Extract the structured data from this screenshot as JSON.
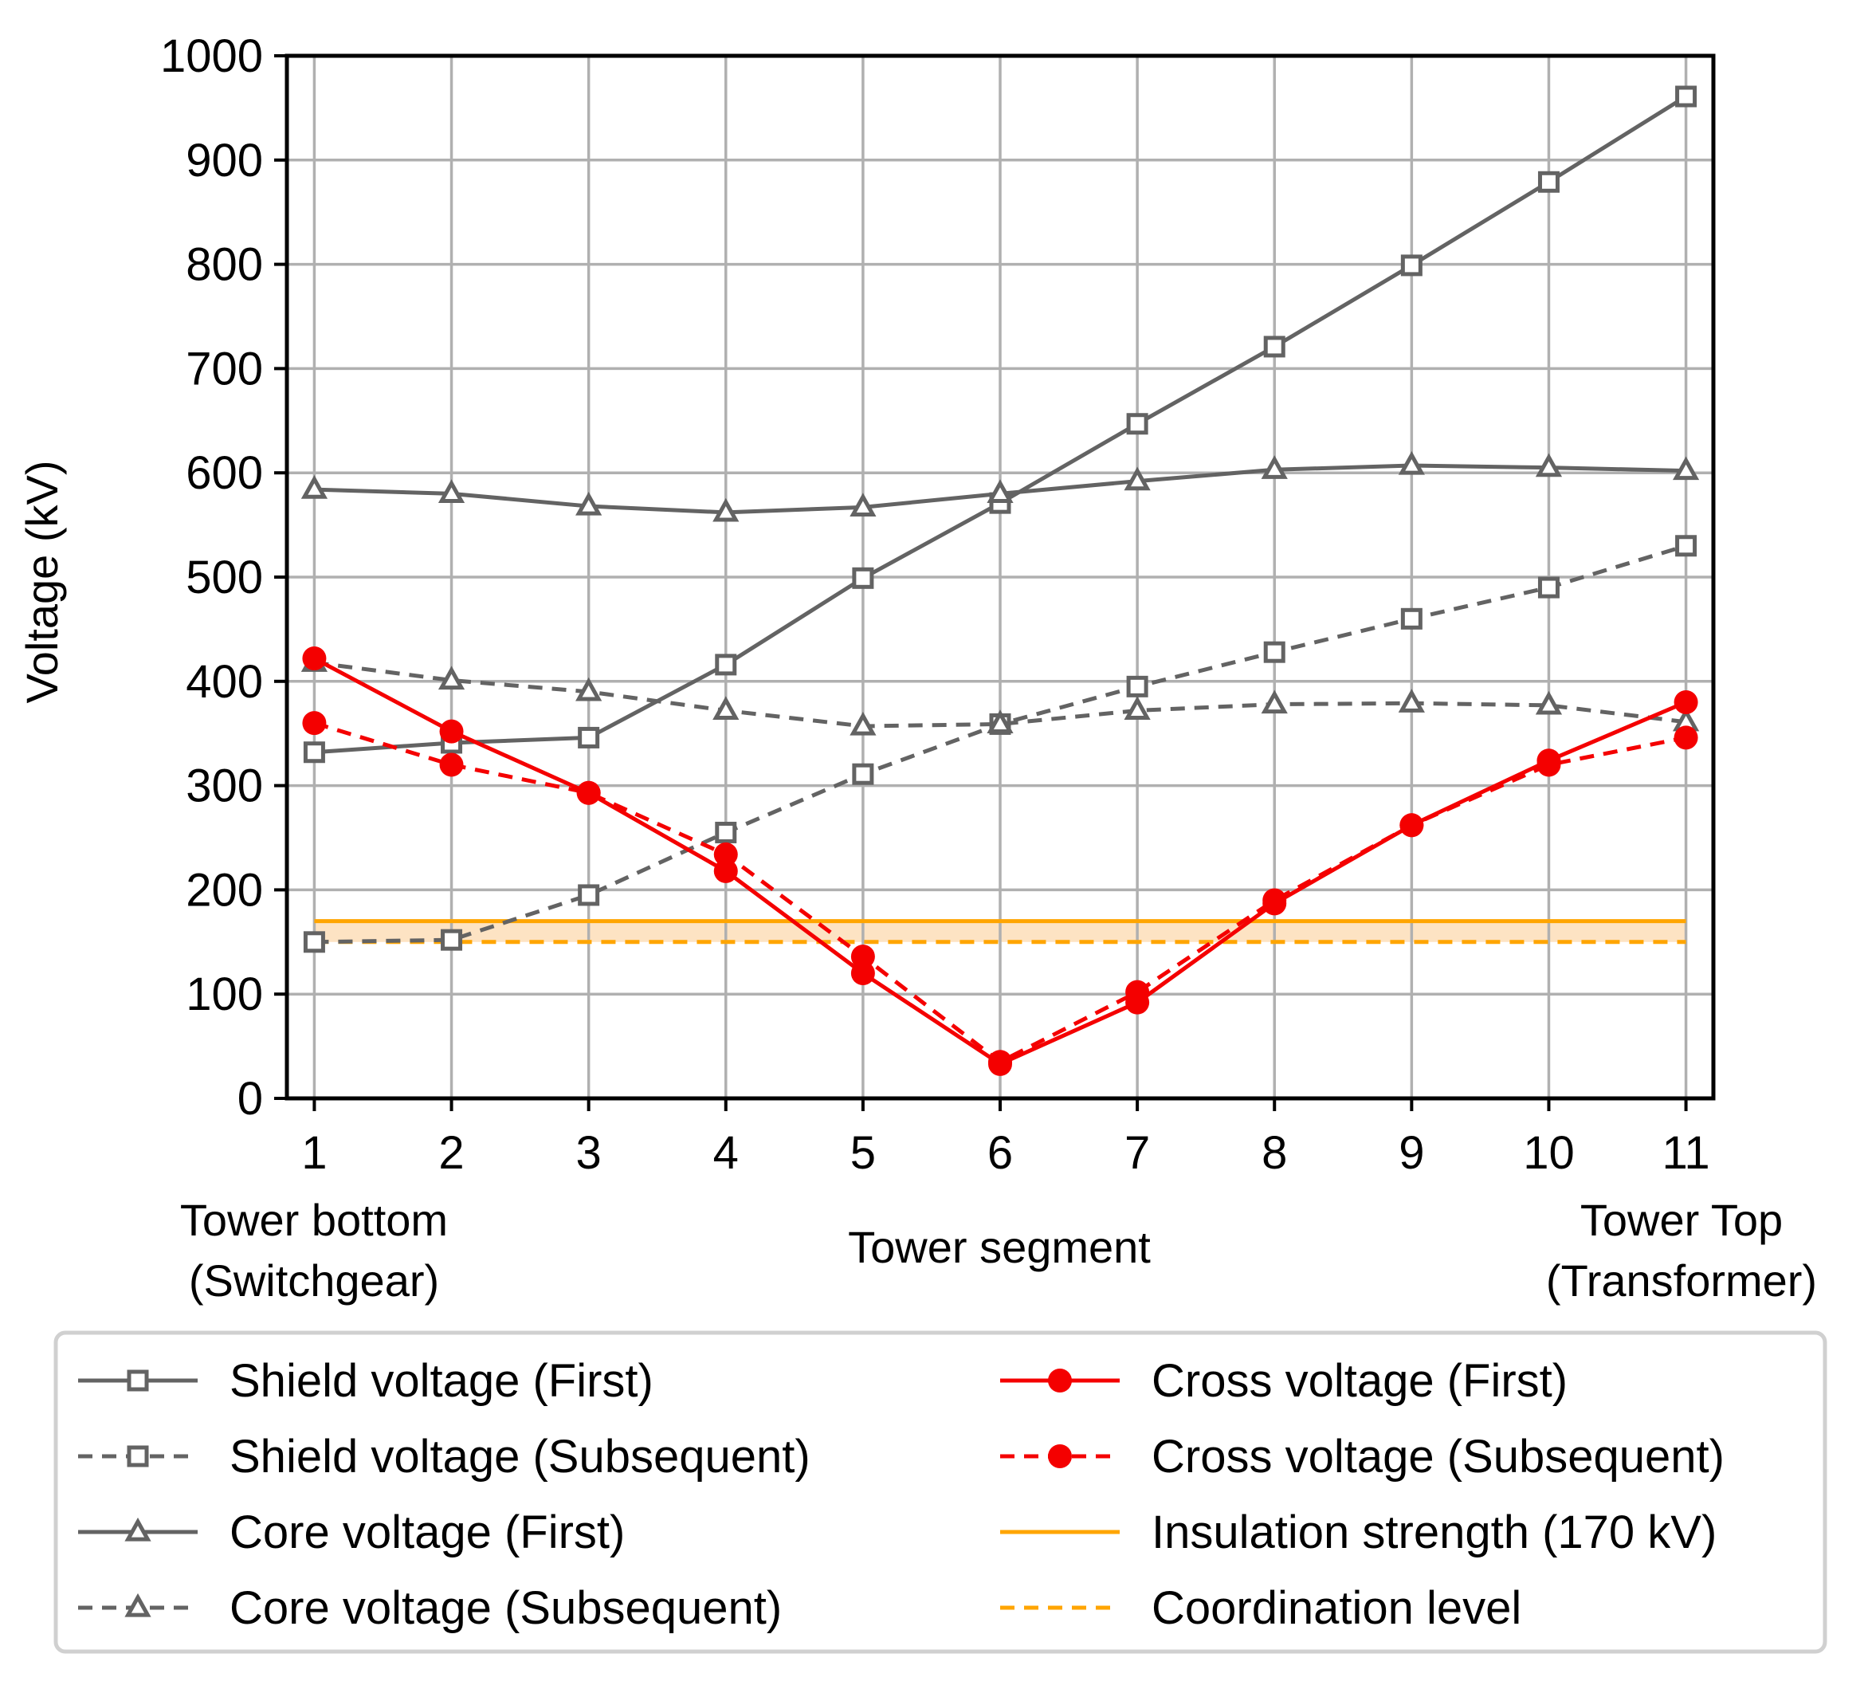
{
  "chart_data": {
    "type": "line",
    "title": "",
    "xlabel": "Tower segment",
    "ylabel": "Voltage (kV)",
    "x": [
      1,
      2,
      3,
      4,
      5,
      6,
      7,
      8,
      9,
      10,
      11
    ],
    "xticks": [
      "1",
      "2",
      "3",
      "4",
      "5",
      "6",
      "7",
      "8",
      "9",
      "10",
      "11"
    ],
    "yticks": [
      "0",
      "100",
      "200",
      "300",
      "400",
      "500",
      "600",
      "700",
      "800",
      "900",
      "1000"
    ],
    "xlim": [
      0.8,
      11.2
    ],
    "ylim": [
      0,
      1000
    ],
    "grid": true,
    "legend_position": "bottom",
    "annotations": {
      "left_top": "Tower bottom",
      "left_bottom": "(Switchgear)",
      "right_top": "Tower Top",
      "right_bottom": "(Transformer)"
    },
    "series": [
      {
        "name": "Shield voltage (First)",
        "color": "#636363",
        "dash": "solid",
        "marker": "square",
        "values": [
          332,
          341,
          346,
          416,
          499,
          571,
          647,
          721,
          799,
          879,
          961
        ]
      },
      {
        "name": "Shield voltage (Subsequent)",
        "color": "#636363",
        "dash": "dashed",
        "marker": "square",
        "values": [
          150,
          152,
          195,
          255,
          311,
          359,
          395,
          428,
          460,
          490,
          530
        ]
      },
      {
        "name": "Core voltage (First)",
        "color": "#636363",
        "dash": "solid",
        "marker": "triangle",
        "values": [
          584,
          580,
          568,
          562,
          567,
          580,
          592,
          603,
          607,
          605,
          602
        ]
      },
      {
        "name": "Core voltage (Subsequent)",
        "color": "#636363",
        "dash": "dashed",
        "marker": "triangle",
        "values": [
          418,
          401,
          390,
          372,
          357,
          359,
          372,
          378,
          379,
          377,
          361
        ]
      },
      {
        "name": "Cross voltage (First)",
        "color": "#f40000",
        "dash": "solid",
        "marker": "circle",
        "values": [
          422,
          352,
          293,
          218,
          120,
          33,
          92,
          187,
          262,
          324,
          380
        ]
      },
      {
        "name": "Cross voltage (Subsequent)",
        "color": "#f40000",
        "dash": "dashed",
        "marker": "circle",
        "values": [
          360,
          320,
          293,
          234,
          136,
          35,
          102,
          190,
          262,
          320,
          346
        ]
      },
      {
        "name": "Insulation strength (170 kV)",
        "color": "#ffa500",
        "dash": "solid",
        "marker": "none",
        "values": [
          170,
          170,
          170,
          170,
          170,
          170,
          170,
          170,
          170,
          170,
          170
        ]
      },
      {
        "name": "Coordination level",
        "color": "#ffa500",
        "dash": "dashed",
        "marker": "none",
        "values": [
          150,
          150,
          150,
          150,
          150,
          150,
          150,
          150,
          150,
          150,
          150
        ]
      }
    ],
    "shaded_band": {
      "from": 150,
      "to": 170,
      "color": "#fde3c3"
    }
  }
}
